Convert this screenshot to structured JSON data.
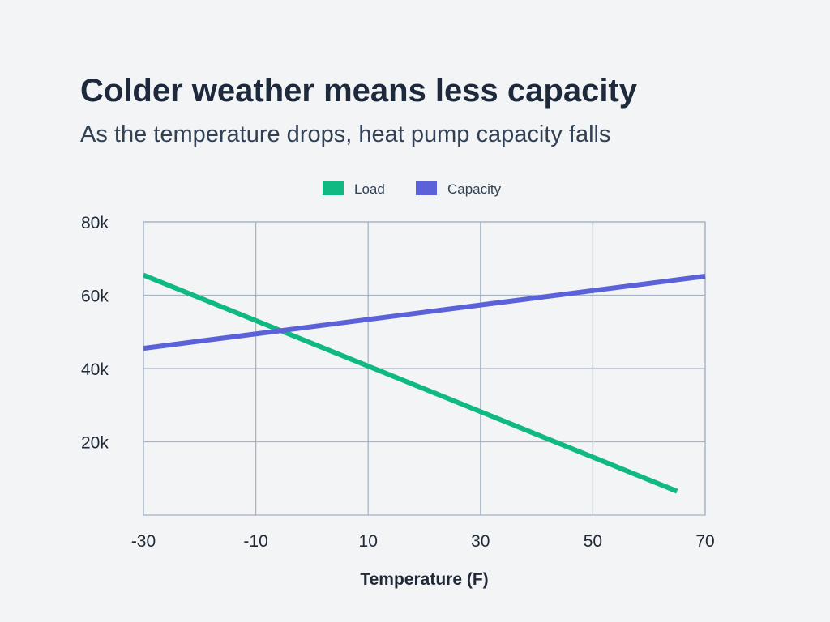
{
  "chart_data": {
    "type": "line",
    "title": "Colder weather means less capacity",
    "subtitle": "As the temperature drops, heat pump capacity falls",
    "xlabel": "Temperature (F)",
    "ylabel": "",
    "xlim": [
      -30,
      70
    ],
    "ylim": [
      0,
      80000
    ],
    "xticks": [
      -30,
      -10,
      10,
      30,
      50,
      70
    ],
    "xtick_labels": [
      "-30",
      "-10",
      "10",
      "30",
      "50",
      "70"
    ],
    "yticks": [
      20000,
      40000,
      60000,
      80000
    ],
    "ytick_labels": [
      "20k",
      "40k",
      "60k",
      "80k"
    ],
    "grid": true,
    "legend": "top-center",
    "series": [
      {
        "name": "Load",
        "color": "#10b981",
        "x": [
          -30,
          65
        ],
        "y": [
          65500,
          6500
        ]
      },
      {
        "name": "Capacity",
        "color": "#5b61d9",
        "x": [
          -30,
          70
        ],
        "y": [
          45500,
          65200
        ]
      }
    ]
  }
}
